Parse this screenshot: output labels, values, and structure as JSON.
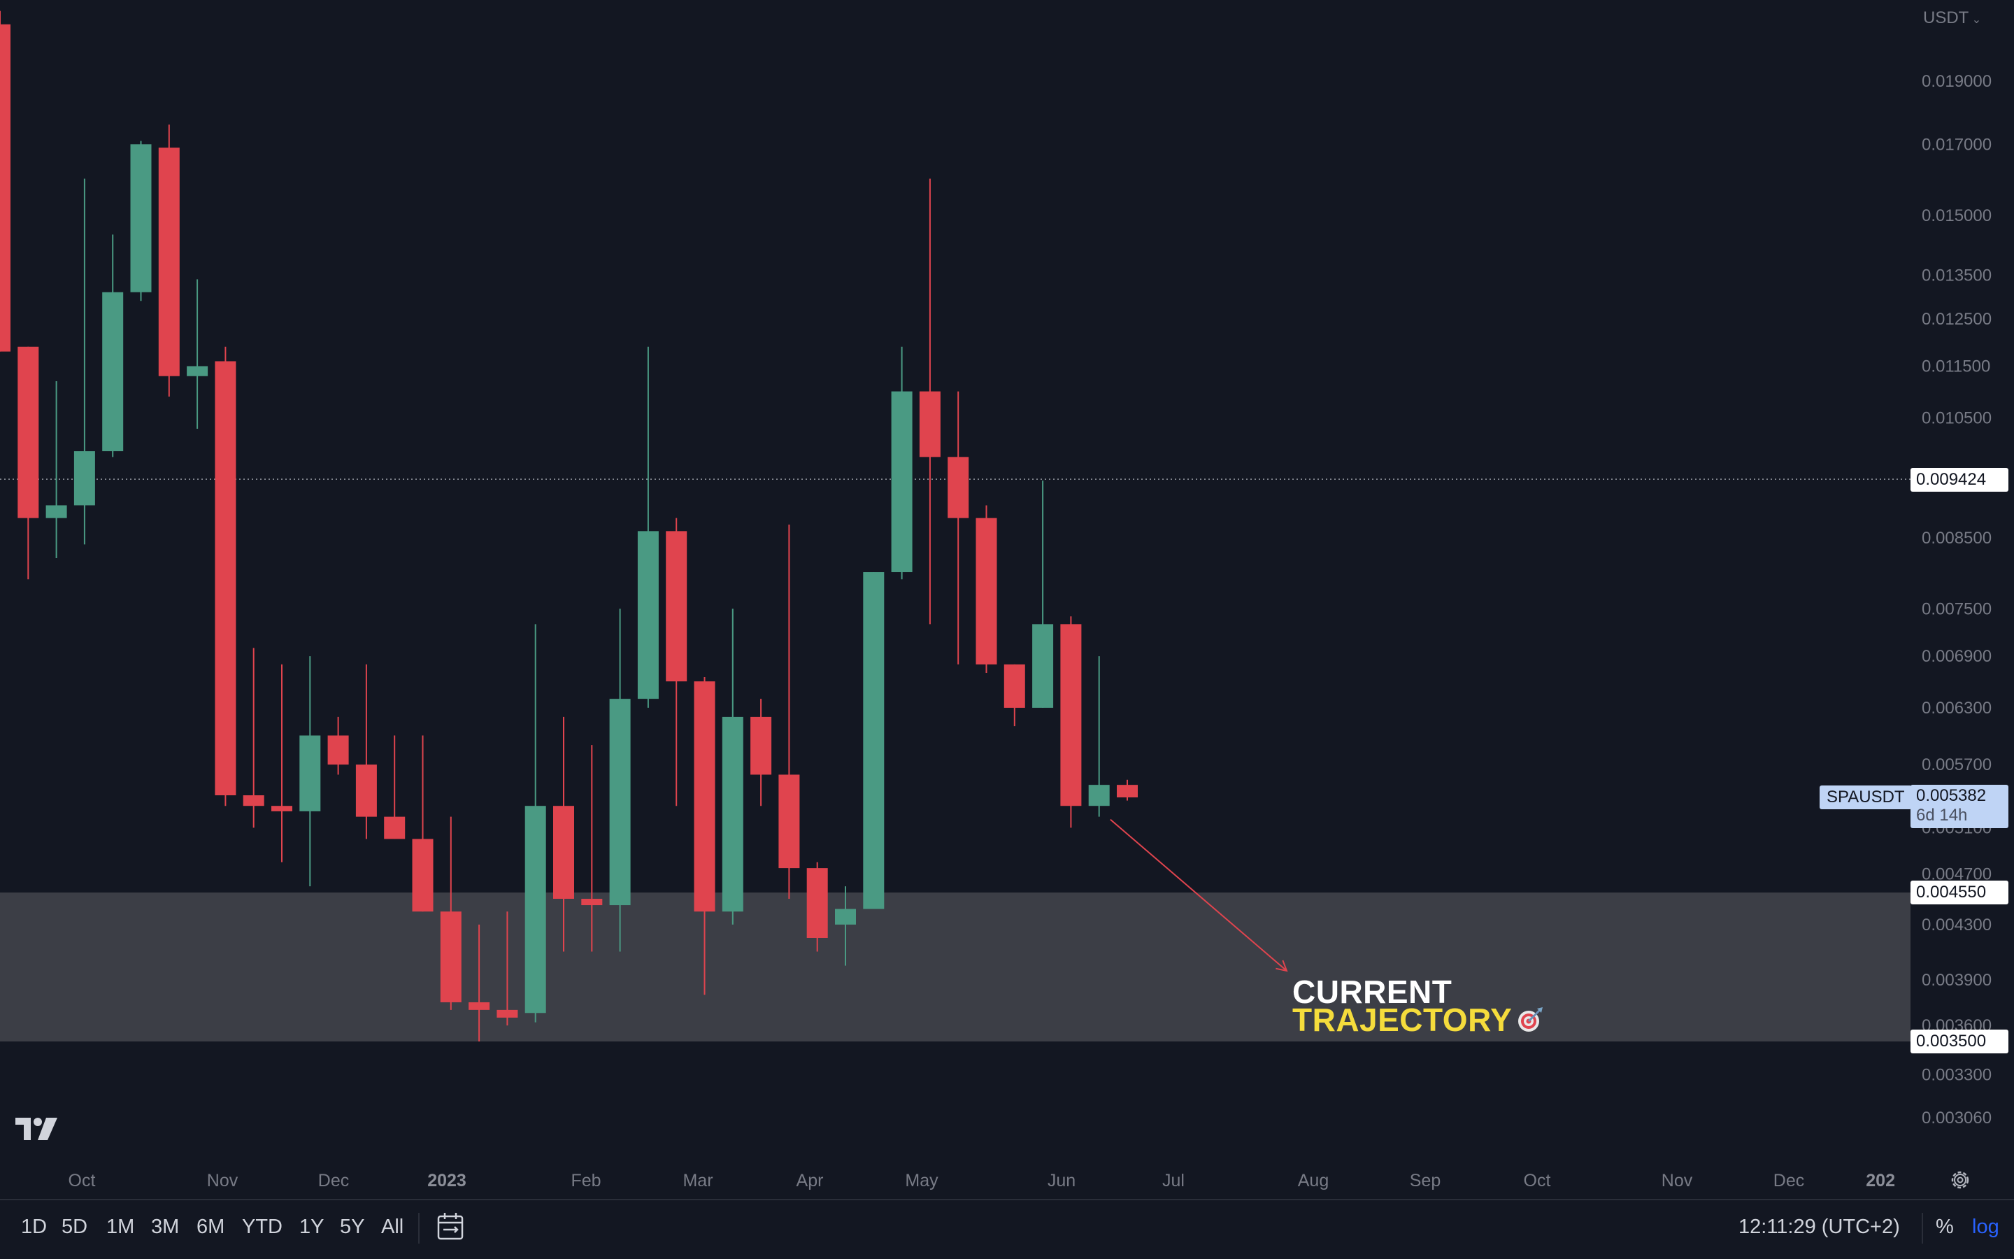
{
  "header": {
    "quote_currency": "USDT"
  },
  "chart_data": {
    "type": "candlestick",
    "symbol": "SPAUSDT",
    "interval": "weekly",
    "scale": "log",
    "grid": false,
    "y_ticks": [
      "0.019000",
      "0.017000",
      "0.015000",
      "0.013500",
      "0.012500",
      "0.011500",
      "0.010500",
      "0.008500",
      "0.007500",
      "0.006900",
      "0.006300",
      "0.005700",
      "0.005100",
      "0.004700",
      "0.004300",
      "0.003900",
      "0.003600",
      "0.003300",
      "0.003060"
    ],
    "x_ticks": [
      {
        "label": "Oct",
        "bold": false
      },
      {
        "label": "Nov",
        "bold": false
      },
      {
        "label": "Dec",
        "bold": false
      },
      {
        "label": "2023",
        "bold": true
      },
      {
        "label": "Feb",
        "bold": false
      },
      {
        "label": "Mar",
        "bold": false
      },
      {
        "label": "Apr",
        "bold": false
      },
      {
        "label": "May",
        "bold": false
      },
      {
        "label": "Jun",
        "bold": false
      },
      {
        "label": "Jul",
        "bold": false
      },
      {
        "label": "Aug",
        "bold": false
      },
      {
        "label": "Sep",
        "bold": false
      },
      {
        "label": "Oct",
        "bold": false
      },
      {
        "label": "Nov",
        "bold": false
      },
      {
        "label": "Dec",
        "bold": false
      },
      {
        "label": "202",
        "bold": true
      }
    ],
    "candles": [
      {
        "o": 0.021,
        "h": 0.0215,
        "l": 0.0118,
        "c": 0.0118
      },
      {
        "o": 0.0119,
        "h": 0.0119,
        "l": 0.0079,
        "c": 0.0088
      },
      {
        "o": 0.0088,
        "h": 0.0112,
        "l": 0.0082,
        "c": 0.009
      },
      {
        "o": 0.009,
        "h": 0.016,
        "l": 0.0084,
        "c": 0.0099
      },
      {
        "o": 0.0099,
        "h": 0.0145,
        "l": 0.0098,
        "c": 0.0131
      },
      {
        "o": 0.0131,
        "h": 0.0171,
        "l": 0.0129,
        "c": 0.017
      },
      {
        "o": 0.0169,
        "h": 0.0176,
        "l": 0.0109,
        "c": 0.0113
      },
      {
        "o": 0.0113,
        "h": 0.0134,
        "l": 0.0103,
        "c": 0.0115
      },
      {
        "o": 0.0116,
        "h": 0.0119,
        "l": 0.0053,
        "c": 0.0054
      },
      {
        "o": 0.0054,
        "h": 0.007,
        "l": 0.0051,
        "c": 0.0053
      },
      {
        "o": 0.0053,
        "h": 0.0068,
        "l": 0.0048,
        "c": 0.00525
      },
      {
        "o": 0.00525,
        "h": 0.0069,
        "l": 0.0046,
        "c": 0.006
      },
      {
        "o": 0.006,
        "h": 0.0062,
        "l": 0.0056,
        "c": 0.0057
      },
      {
        "o": 0.0057,
        "h": 0.0068,
        "l": 0.005,
        "c": 0.0052
      },
      {
        "o": 0.0052,
        "h": 0.006,
        "l": 0.005,
        "c": 0.005
      },
      {
        "o": 0.005,
        "h": 0.006,
        "l": 0.0044,
        "c": 0.0044
      },
      {
        "o": 0.0044,
        "h": 0.0052,
        "l": 0.0037,
        "c": 0.00375
      },
      {
        "o": 0.00375,
        "h": 0.0043,
        "l": 0.0035,
        "c": 0.0037
      },
      {
        "o": 0.0037,
        "h": 0.0044,
        "l": 0.0036,
        "c": 0.00365
      },
      {
        "o": 0.00368,
        "h": 0.0073,
        "l": 0.00362,
        "c": 0.0053
      },
      {
        "o": 0.0053,
        "h": 0.0062,
        "l": 0.0041,
        "c": 0.0045
      },
      {
        "o": 0.0045,
        "h": 0.0059,
        "l": 0.0041,
        "c": 0.00445
      },
      {
        "o": 0.00445,
        "h": 0.0075,
        "l": 0.0041,
        "c": 0.0064
      },
      {
        "o": 0.0064,
        "h": 0.0119,
        "l": 0.0063,
        "c": 0.0086
      },
      {
        "o": 0.0086,
        "h": 0.0088,
        "l": 0.0053,
        "c": 0.0066
      },
      {
        "o": 0.0066,
        "h": 0.00665,
        "l": 0.0038,
        "c": 0.0044
      },
      {
        "o": 0.0044,
        "h": 0.0075,
        "l": 0.0043,
        "c": 0.0062
      },
      {
        "o": 0.0062,
        "h": 0.0064,
        "l": 0.0053,
        "c": 0.0056
      },
      {
        "o": 0.0056,
        "h": 0.0087,
        "l": 0.0045,
        "c": 0.00475
      },
      {
        "o": 0.00475,
        "h": 0.0048,
        "l": 0.0041,
        "c": 0.0042
      },
      {
        "o": 0.0043,
        "h": 0.0046,
        "l": 0.004,
        "c": 0.00442
      },
      {
        "o": 0.00442,
        "h": 0.008,
        "l": 0.00442,
        "c": 0.008
      },
      {
        "o": 0.008,
        "h": 0.0119,
        "l": 0.0079,
        "c": 0.011
      },
      {
        "o": 0.011,
        "h": 0.016,
        "l": 0.0073,
        "c": 0.0098
      },
      {
        "o": 0.0098,
        "h": 0.011,
        "l": 0.0068,
        "c": 0.0088
      },
      {
        "o": 0.0088,
        "h": 0.009,
        "l": 0.0067,
        "c": 0.0068
      },
      {
        "o": 0.0068,
        "h": 0.0068,
        "l": 0.0061,
        "c": 0.0063
      },
      {
        "o": 0.0063,
        "h": 0.0094,
        "l": 0.0063,
        "c": 0.0073
      },
      {
        "o": 0.0073,
        "h": 0.0074,
        "l": 0.0051,
        "c": 0.0053
      },
      {
        "o": 0.0053,
        "h": 0.0069,
        "l": 0.0052,
        "c": 0.0055
      },
      {
        "o": 0.0055,
        "h": 0.00555,
        "l": 0.00535,
        "c": 0.00538
      }
    ],
    "horizontal_lines": [
      {
        "price": 0.009424,
        "label": "0.009424",
        "style": "dotted"
      }
    ],
    "zone": {
      "top": 0.00455,
      "bottom": 0.0035,
      "top_label": "0.004550",
      "bottom_label": "0.003500"
    },
    "last_price": {
      "symbol": "SPAUSDT",
      "value": "0.005382",
      "countdown": "6d 14h"
    },
    "annotation": {
      "line1": "CURRENT",
      "line2": "TRAJECTORY"
    },
    "colors": {
      "up": "#4a9a83",
      "down": "#e0444e",
      "background": "#131722",
      "zone": "#3c3e46",
      "arrow": "#e0444e"
    }
  },
  "toolbar": {
    "ranges": [
      "1D",
      "5D",
      "1M",
      "3M",
      "6M",
      "YTD",
      "1Y",
      "5Y",
      "All"
    ],
    "clock": "12:11:29 (UTC+2)",
    "percent_label": "%",
    "log_label": "log",
    "icons": {
      "calendar": "calendar-range-icon",
      "settings": "gear-icon",
      "logo": "tradingview-logo-icon"
    }
  }
}
